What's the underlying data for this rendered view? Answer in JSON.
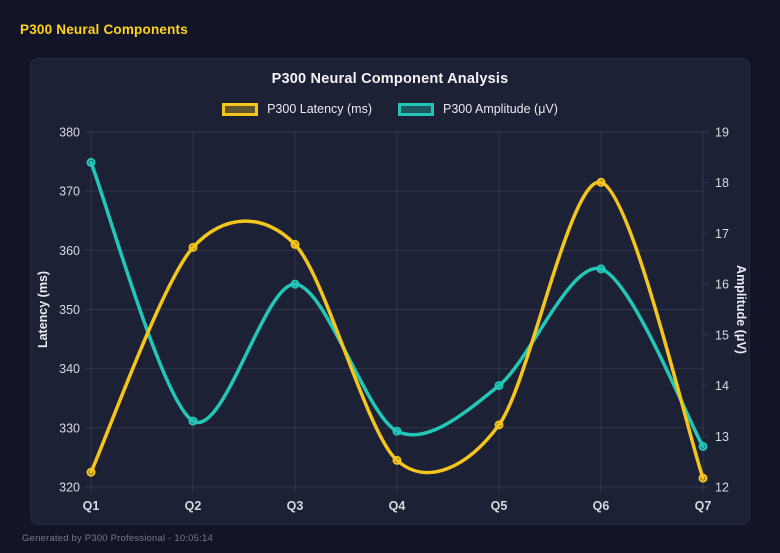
{
  "header": {
    "title": "P300 Neural Components"
  },
  "footer": {
    "text": "Generated by P300 Professional - 10:05:14"
  },
  "chart_data": {
    "type": "line",
    "title": "P300 Neural Component Analysis",
    "categories": [
      "Q1",
      "Q2",
      "Q3",
      "Q4",
      "Q5",
      "Q6",
      "Q7"
    ],
    "series": [
      {
        "name": "P300 Latency (ms)",
        "axis": "left",
        "color": "#f4c51c",
        "fill": "rgba(244,197,28,0.32)",
        "values": [
          322.5,
          360.5,
          361.0,
          324.5,
          330.5,
          371.5,
          321.5
        ]
      },
      {
        "name": "P300 Amplitude (μV)",
        "axis": "right",
        "color": "#22c7b8",
        "fill": "rgba(34,199,184,0.32)",
        "values": [
          18.4,
          13.3,
          16.0,
          13.1,
          14.0,
          16.3,
          12.8
        ]
      }
    ],
    "left_axis": {
      "label": "Latency (ms)",
      "min": 320,
      "max": 380,
      "ticks": [
        380,
        370,
        360,
        350,
        340,
        330,
        320
      ]
    },
    "right_axis": {
      "label": "Amplitude (μV)",
      "min": 12,
      "max": 19,
      "ticks": [
        19,
        18,
        17,
        16,
        15,
        14,
        13,
        12
      ]
    },
    "grid": true,
    "smooth": true,
    "legend_position": "top"
  },
  "colors": {
    "page_bg": "#121528",
    "panel_bg": "#1d2136",
    "panel_border": "#272b44",
    "grid": "rgba(255,255,255,0.09)",
    "tick_text": "#d5d9e4",
    "axis_title_text": "#e8ebf3",
    "title_text": "#f2f3f7",
    "header_text": "#ffd21e",
    "footer_text": "#757a8f"
  }
}
